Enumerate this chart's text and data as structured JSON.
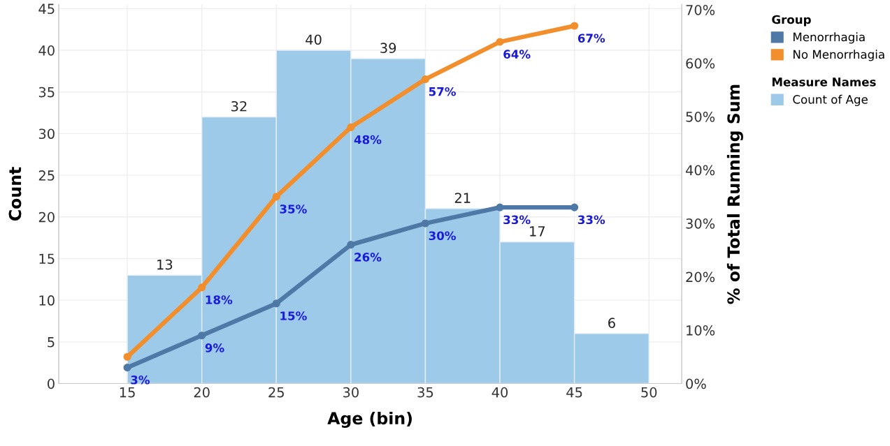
{
  "chart_data": {
    "type": "histogram",
    "xlabel": "Age (bin)",
    "ylabel": "Count",
    "y2label": "% of Total Running Sum",
    "bins": [
      15,
      20,
      25,
      30,
      35,
      40,
      45,
      50
    ],
    "series": [
      {
        "name": "Count of Age",
        "color": "#9ecae9",
        "values": [
          13,
          32,
          40,
          39,
          21,
          17,
          6
        ],
        "data_labels": true
      },
      {
        "type": "line",
        "name": "Menorrhagia",
        "color": "#4e79a7",
        "axis": "y2",
        "x": [
          15,
          20,
          25,
          30,
          35,
          40,
          45
        ],
        "values": [
          3,
          9,
          15,
          26,
          30,
          33,
          33
        ],
        "value_labels": [
          "3%",
          "9%",
          "15%",
          "26%",
          "30%",
          "33%",
          "33%"
        ]
      },
      {
        "type": "line",
        "name": "No Menorrhagia",
        "color": "#f28e2b",
        "axis": "y2",
        "x": [
          15,
          20,
          25,
          30,
          35,
          40,
          45
        ],
        "values": [
          5,
          18,
          35,
          48,
          57,
          64,
          67
        ],
        "value_labels": [
          null,
          "18%",
          "35%",
          "48%",
          "57%",
          "64%",
          "67%"
        ]
      }
    ],
    "xlim": [
      10.4,
      52.2
    ],
    "xticks": [
      15,
      20,
      25,
      30,
      35,
      40,
      45,
      50
    ],
    "ylim": [
      0,
      45.5
    ],
    "yticks": [
      0,
      5,
      10,
      15,
      20,
      25,
      30,
      35,
      40,
      45
    ],
    "y2lim": [
      0,
      71
    ],
    "y2ticks": [
      {
        "value": 0,
        "label": "0%"
      },
      {
        "value": 10,
        "label": "10%"
      },
      {
        "value": 20,
        "label": "20%"
      },
      {
        "value": 30,
        "label": "30%"
      },
      {
        "value": 40,
        "label": "40%"
      },
      {
        "value": 50,
        "label": "50%"
      },
      {
        "value": 60,
        "label": "60%"
      },
      {
        "value": 70,
        "label": "70%"
      }
    ],
    "marker": "circle",
    "grid": true,
    "legend": "top right",
    "legend_title": "Group",
    "annotations": [
      "Measure Names"
    ]
  }
}
